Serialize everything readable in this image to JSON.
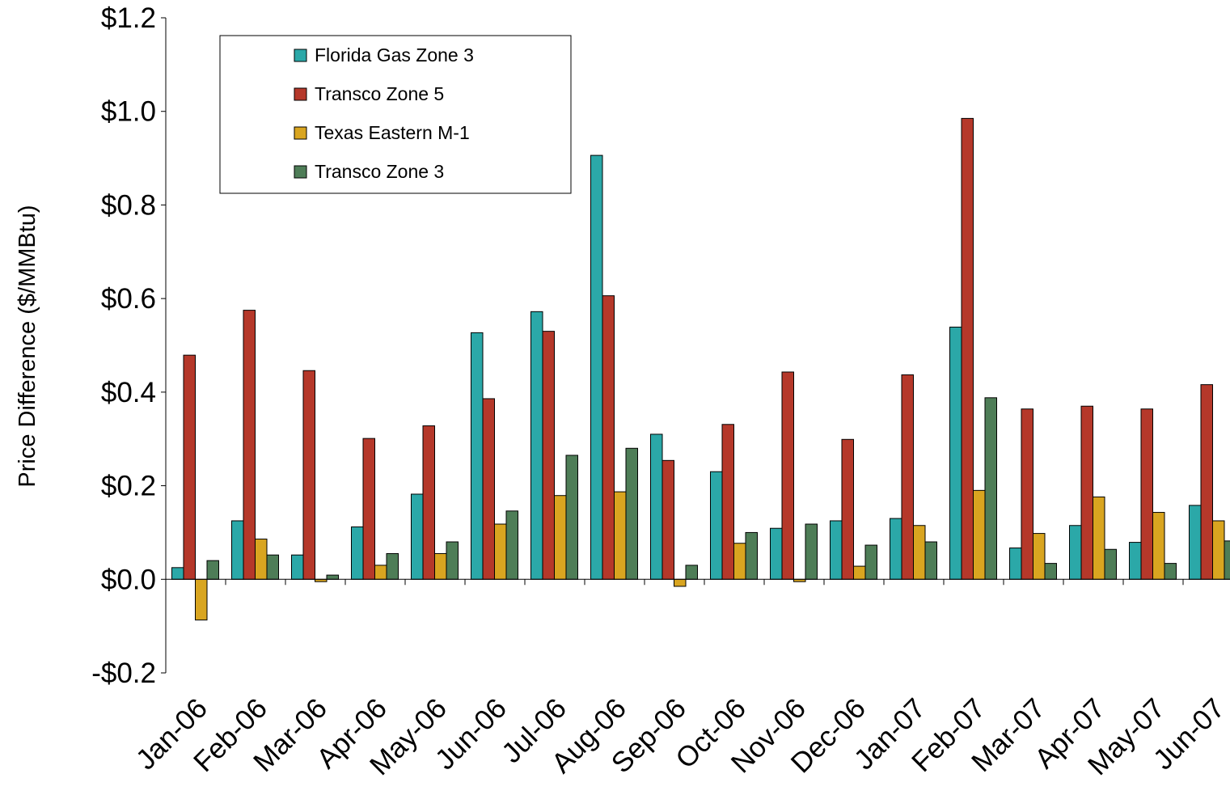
{
  "chart_data": {
    "type": "bar",
    "title": "",
    "xlabel": "",
    "ylabel": "Price Difference ($/MMBtu)",
    "ylim": [
      -0.2,
      1.2
    ],
    "yticks": [
      -0.2,
      0.0,
      0.2,
      0.4,
      0.6,
      0.8,
      1.0,
      1.2
    ],
    "ytick_labels": [
      "-$0.2",
      "$0.0",
      "$0.2",
      "$0.4",
      "$0.6",
      "$0.8",
      "$1.0",
      "$1.2"
    ],
    "grid": false,
    "legend_position": "top-left",
    "categories": [
      "Jan-06",
      "Feb-06",
      "Mar-06",
      "Apr-06",
      "May-06",
      "Jun-06",
      "Jul-06",
      "Aug-06",
      "Sep-06",
      "Oct-06",
      "Nov-06",
      "Dec-06",
      "Jan-07",
      "Feb-07",
      "Mar-07",
      "Apr-07",
      "May-07",
      "Jun-07"
    ],
    "series": [
      {
        "name": "Florida Gas Zone 3",
        "color": "#2BA8A8",
        "values": [
          0.025,
          0.125,
          0.052,
          0.112,
          0.182,
          0.527,
          0.572,
          0.906,
          0.31,
          0.23,
          0.109,
          0.125,
          0.13,
          0.539,
          0.067,
          0.115,
          0.079,
          0.158
        ]
      },
      {
        "name": "Transco Zone 5",
        "color": "#B5382A",
        "values": [
          0.479,
          0.575,
          0.446,
          0.301,
          0.328,
          0.386,
          0.53,
          0.606,
          0.254,
          0.331,
          0.443,
          0.299,
          0.437,
          0.985,
          0.364,
          0.37,
          0.364,
          0.416
        ]
      },
      {
        "name": "Texas Eastern M-1",
        "color": "#D9A520",
        "values": [
          -0.087,
          0.086,
          -0.005,
          0.03,
          0.055,
          0.118,
          0.179,
          0.187,
          -0.015,
          0.077,
          -0.005,
          0.028,
          0.115,
          0.19,
          0.098,
          0.176,
          0.143,
          0.125
        ]
      },
      {
        "name": "Transco Zone 3",
        "color": "#4E7D57",
        "values": [
          0.04,
          0.052,
          0.009,
          0.055,
          0.08,
          0.146,
          0.265,
          0.28,
          0.03,
          0.1,
          0.118,
          0.073,
          0.08,
          0.388,
          0.034,
          0.064,
          0.034,
          0.082
        ]
      }
    ]
  }
}
